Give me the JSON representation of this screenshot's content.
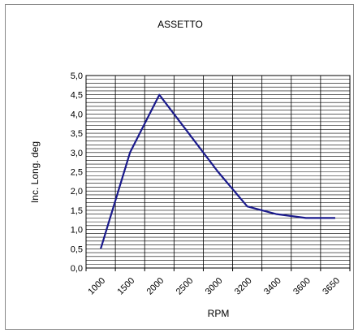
{
  "chart_data": {
    "type": "line",
    "title": "ASSETTO",
    "xlabel": "RPM",
    "ylabel": "Inc. Long. deg",
    "categories": [
      "1000",
      "1500",
      "2000",
      "2500",
      "3000",
      "3200",
      "3400",
      "3600",
      "3650"
    ],
    "series": [
      {
        "values": [
          0.5,
          3.0,
          4.5,
          3.5,
          2.5,
          1.6,
          1.4,
          1.3,
          1.3
        ]
      }
    ],
    "ylim": [
      0,
      5
    ],
    "y_ticks": [
      "0,0",
      "0,5",
      "1,0",
      "1,5",
      "2,0",
      "2,5",
      "3,0",
      "3,5",
      "4,0",
      "4,5",
      "5,0"
    ],
    "y_minor_step": 0.1,
    "grid": true,
    "legend": "none",
    "colors": {
      "line": "#1a1a8c",
      "grid": "#000000",
      "frame": "#888888"
    }
  }
}
